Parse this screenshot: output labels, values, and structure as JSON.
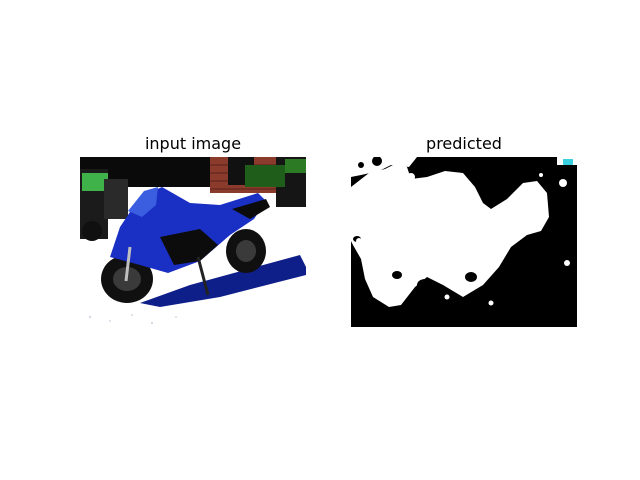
{
  "figure": {
    "panels": [
      {
        "title": "input image"
      },
      {
        "title": "predicted"
      }
    ],
    "colors": {
      "motorcycle": "#1a2fc4",
      "mask_foreground": "#ffffff",
      "mask_background": "#000000",
      "brick": "#7a3a2a"
    }
  }
}
